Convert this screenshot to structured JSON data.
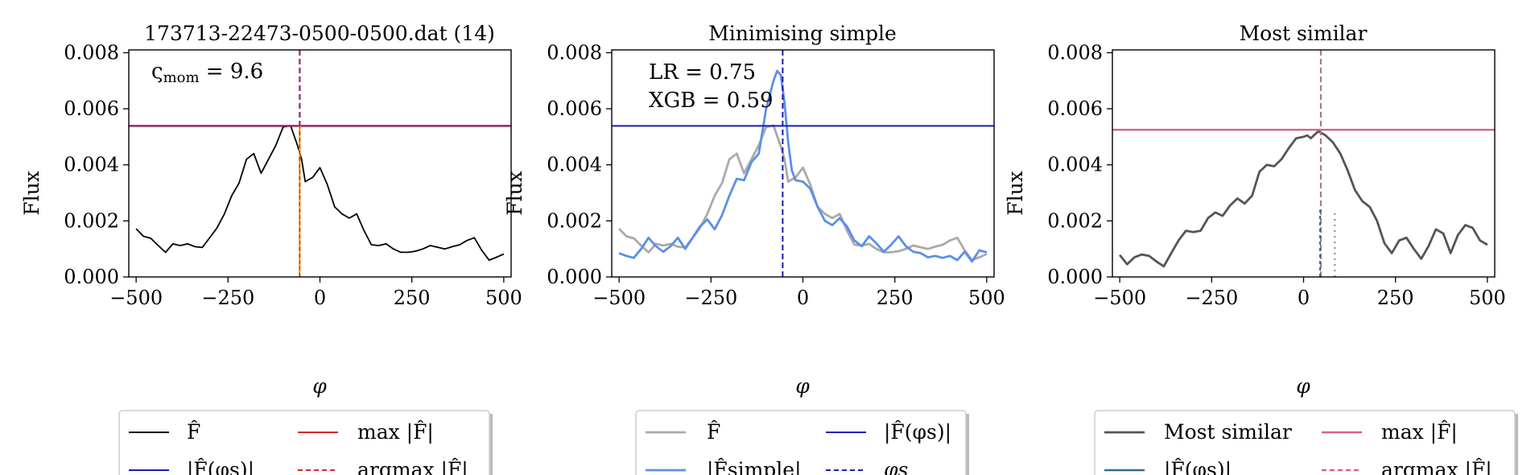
{
  "chart_data": [
    {
      "type": "line",
      "title": "173713-22473-0500-0500.dat (14)",
      "xlabel": "φ",
      "ylabel": "Flux",
      "xlim": [
        -520,
        520
      ],
      "ylim": [
        0,
        0.0081
      ],
      "xticks": [
        -500,
        -250,
        0,
        250,
        500
      ],
      "xtick_labels": [
        "−500",
        "−250",
        "0",
        "250",
        "500"
      ],
      "yticks": [
        0,
        0.002,
        0.004,
        0.006,
        0.008
      ],
      "ytick_labels": [
        "0.000",
        "0.002",
        "0.004",
        "0.006",
        "0.008"
      ],
      "annotation": {
        "prefix": "ς",
        "sub": "mom",
        "text": " = 9.6"
      },
      "series": [
        {
          "role": "F-hat",
          "color": "#000000",
          "x": [
            -500,
            -480,
            -460,
            -440,
            -420,
            -400,
            -380,
            -360,
            -340,
            -320,
            -300,
            -280,
            -260,
            -240,
            -220,
            -200,
            -180,
            -160,
            -140,
            -120,
            -100,
            -80,
            -60,
            -50,
            -40,
            -20,
            0,
            20,
            40,
            60,
            80,
            100,
            120,
            140,
            160,
            180,
            200,
            220,
            240,
            260,
            280,
            300,
            320,
            340,
            360,
            380,
            400,
            420,
            440,
            460,
            480,
            500
          ],
          "values": [
            0.00172,
            0.00145,
            0.00138,
            0.00112,
            0.00088,
            0.00118,
            0.00112,
            0.00118,
            0.00108,
            0.00105,
            0.0014,
            0.00175,
            0.00225,
            0.0029,
            0.00335,
            0.0042,
            0.0044,
            0.0037,
            0.0042,
            0.0047,
            0.00535,
            0.0054,
            0.00465,
            0.0042,
            0.0034,
            0.00355,
            0.0039,
            0.0033,
            0.0025,
            0.00225,
            0.0021,
            0.00225,
            0.00165,
            0.00115,
            0.00112,
            0.00118,
            0.001,
            0.00088,
            0.00088,
            0.00092,
            0.001,
            0.00112,
            0.00106,
            0.001,
            0.00108,
            0.00115,
            0.0013,
            0.0014,
            0.00095,
            0.0006,
            0.0007,
            0.00082
          ],
          "width": 1.8
        }
      ],
      "hlines": [
        {
          "y": 0.00539,
          "color": "#1a1ab8",
          "width": 2.5
        },
        {
          "y": 0.00539,
          "color": "#d62728",
          "width": 1.6
        }
      ],
      "vlines": [
        {
          "x": -55,
          "y0": 0,
          "y1": 0.0081,
          "color": "#1a1ab8",
          "width": 2.2,
          "dash": "7,4"
        },
        {
          "x": -55,
          "y0": 0,
          "y1": 0.0081,
          "color": "#d62728",
          "width": 1.6,
          "dash": "7,4"
        },
        {
          "x": -55,
          "y0": 0,
          "y1": 0.0054,
          "color": "#f5a623",
          "width": 2.2,
          "dash": ""
        },
        {
          "x": -55,
          "y0": 0,
          "y1": 0.0054,
          "color": "#d62728",
          "width": 1.2,
          "dash": "5,3"
        }
      ],
      "legend": {
        "position": "below",
        "rows": [
          [
            {
              "line": "#000000",
              "dash": "",
              "label": "F̂"
            },
            {
              "line": "#d62728",
              "dash": "",
              "label": "max |F̂|"
            }
          ],
          [
            {
              "line": "#1a1ab8",
              "dash": "",
              "label": "|F̂(φs)|"
            },
            {
              "line": "#d62728",
              "dash": "6,4",
              "label": "argmax |F̂|"
            }
          ]
        ]
      }
    },
    {
      "type": "line",
      "title": "Minimising simple",
      "xlabel": "φ",
      "ylabel": "Flux",
      "xlim": [
        -520,
        520
      ],
      "ylim": [
        0,
        0.0081
      ],
      "xticks": [
        -500,
        -250,
        0,
        250,
        500
      ],
      "xtick_labels": [
        "−500",
        "−250",
        "0",
        "250",
        "500"
      ],
      "yticks": [
        0,
        0.002,
        0.004,
        0.006,
        0.008
      ],
      "ytick_labels": [
        "0.000",
        "0.002",
        "0.004",
        "0.006",
        "0.008"
      ],
      "annotation_lines": [
        "LR = 0.75",
        "XGB = 0.59"
      ],
      "series": [
        {
          "role": "F-hat",
          "color": "#aaaaaa",
          "x": [
            -500,
            -480,
            -460,
            -440,
            -420,
            -400,
            -380,
            -360,
            -340,
            -320,
            -300,
            -280,
            -260,
            -240,
            -220,
            -200,
            -180,
            -160,
            -140,
            -120,
            -100,
            -80,
            -60,
            -50,
            -40,
            -20,
            0,
            20,
            40,
            60,
            80,
            100,
            120,
            140,
            160,
            180,
            200,
            220,
            240,
            260,
            280,
            300,
            320,
            340,
            360,
            380,
            400,
            420,
            440,
            460,
            480,
            500
          ],
          "values": [
            0.00172,
            0.00145,
            0.00138,
            0.00112,
            0.00088,
            0.00118,
            0.00112,
            0.00118,
            0.00108,
            0.00105,
            0.0014,
            0.00175,
            0.00225,
            0.0029,
            0.00335,
            0.0042,
            0.0044,
            0.0037,
            0.0042,
            0.0047,
            0.00535,
            0.0054,
            0.00465,
            0.0042,
            0.0034,
            0.00355,
            0.0039,
            0.0033,
            0.0025,
            0.00225,
            0.0021,
            0.00225,
            0.00165,
            0.00115,
            0.00112,
            0.00118,
            0.001,
            0.00088,
            0.00088,
            0.00092,
            0.001,
            0.00112,
            0.00106,
            0.001,
            0.00108,
            0.00115,
            0.0013,
            0.0014,
            0.00095,
            0.0006,
            0.0007,
            0.00082
          ],
          "width": 2.8
        },
        {
          "role": "F-simple",
          "color": "#5b8fe8",
          "x": [
            -500,
            -480,
            -460,
            -440,
            -420,
            -400,
            -380,
            -360,
            -340,
            -320,
            -300,
            -280,
            -260,
            -240,
            -220,
            -200,
            -180,
            -160,
            -140,
            -120,
            -100,
            -80,
            -70,
            -60,
            -50,
            -40,
            -30,
            -20,
            0,
            20,
            40,
            60,
            80,
            100,
            120,
            140,
            160,
            180,
            200,
            220,
            240,
            260,
            280,
            300,
            320,
            340,
            360,
            380,
            400,
            420,
            440,
            460,
            480,
            500
          ],
          "values": [
            0.00085,
            0.00075,
            0.00068,
            0.001,
            0.0014,
            0.0011,
            0.0009,
            0.0011,
            0.0014,
            0.001,
            0.0014,
            0.0018,
            0.00205,
            0.0017,
            0.0022,
            0.0029,
            0.0035,
            0.00345,
            0.0041,
            0.0044,
            0.006,
            0.007,
            0.00735,
            0.0072,
            0.0062,
            0.0048,
            0.0038,
            0.00345,
            0.0034,
            0.00315,
            0.0025,
            0.002,
            0.00185,
            0.0021,
            0.0018,
            0.0013,
            0.0011,
            0.00145,
            0.0012,
            0.0009,
            0.00115,
            0.00145,
            0.0011,
            0.0009,
            0.00085,
            0.0007,
            0.00075,
            0.00068,
            0.00075,
            0.0006,
            0.0009,
            0.00055,
            0.00095,
            0.00088
          ],
          "width": 2.8
        }
      ],
      "hlines": [
        {
          "y": 0.00539,
          "color": "#1a1ab8",
          "width": 2
        }
      ],
      "vlines": [
        {
          "x": -55,
          "y0": 0,
          "y1": 0.0081,
          "color": "#1a1ab8",
          "width": 2,
          "dash": "7,4"
        }
      ],
      "legend": {
        "position": "below",
        "rows": [
          [
            {
              "line": "#aaaaaa",
              "dash": "",
              "label": "F̂"
            },
            {
              "line": "#1a1ab8",
              "dash": "",
              "label": "|F̂(φs)|"
            }
          ],
          [
            {
              "line": "#5b8fe8",
              "dash": "",
              "label": "|F̂simple|"
            },
            {
              "line": "#1a1ab8",
              "dash": "6,4",
              "label": "φs"
            }
          ]
        ]
      }
    },
    {
      "type": "line",
      "title": "Most similar",
      "xlabel": "φ",
      "ylabel": "Flux",
      "xlim": [
        -520,
        520
      ],
      "ylim": [
        0,
        0.0081
      ],
      "xticks": [
        -500,
        -250,
        0,
        250,
        500
      ],
      "xtick_labels": [
        "−500",
        "−250",
        "0",
        "250",
        "500"
      ],
      "yticks": [
        0,
        0.002,
        0.004,
        0.006,
        0.008
      ],
      "ytick_labels": [
        "0.000",
        "0.002",
        "0.004",
        "0.006",
        "0.008"
      ],
      "series": [
        {
          "role": "Most similar",
          "color": "#555555",
          "x": [
            -500,
            -480,
            -460,
            -440,
            -420,
            -400,
            -380,
            -360,
            -340,
            -320,
            -300,
            -280,
            -260,
            -240,
            -220,
            -200,
            -180,
            -160,
            -140,
            -120,
            -100,
            -80,
            -60,
            -40,
            -20,
            0,
            10,
            20,
            40,
            60,
            80,
            100,
            120,
            140,
            160,
            180,
            200,
            220,
            240,
            260,
            280,
            300,
            320,
            340,
            360,
            380,
            400,
            420,
            440,
            460,
            480,
            500
          ],
          "values": [
            0.00078,
            0.00045,
            0.0007,
            0.0008,
            0.00075,
            0.00055,
            0.00038,
            0.00085,
            0.0013,
            0.00165,
            0.0016,
            0.00165,
            0.0021,
            0.0023,
            0.00218,
            0.00255,
            0.0028,
            0.00262,
            0.0029,
            0.00375,
            0.004,
            0.00395,
            0.0042,
            0.0046,
            0.00495,
            0.005,
            0.00505,
            0.00495,
            0.0052,
            0.00505,
            0.0048,
            0.0044,
            0.0038,
            0.0031,
            0.0027,
            0.0025,
            0.002,
            0.0012,
            0.00085,
            0.0013,
            0.0014,
            0.001,
            0.00065,
            0.0011,
            0.0017,
            0.00155,
            0.00085,
            0.0015,
            0.00185,
            0.00175,
            0.0013,
            0.00115
          ],
          "width": 2.8
        }
      ],
      "hlines": [
        {
          "y": 0.00525,
          "color": "#d8628c",
          "width": 2.4
        }
      ],
      "vlines": [
        {
          "x": 47,
          "y0": 0,
          "y1": 0.0081,
          "color": "#d8628c",
          "width": 2.2,
          "dash": "7,4"
        },
        {
          "x": 47,
          "y0": 0,
          "y1": 0.0081,
          "color": "#888888",
          "width": 1.2,
          "dash": "7,4"
        },
        {
          "x": 45,
          "y0": 0,
          "y1": 0.0024,
          "color": "#2e6f8e",
          "width": 2.2,
          "dash": "4,4"
        },
        {
          "x": 85,
          "y0": 0,
          "y1": 0.0024,
          "color": "#888888",
          "width": 2,
          "dash": "2,5"
        }
      ],
      "legend": {
        "position": "below",
        "rows": [
          [
            {
              "line": "#555555",
              "dash": "",
              "label": "Most similar"
            },
            {
              "line": "#d8628c",
              "dash": "",
              "label": "max |F̂|"
            }
          ],
          [
            {
              "line": "#2e6f8e",
              "dash": "",
              "label": "|F̂(φs)|"
            },
            {
              "line": "#d8628c",
              "dash": "6,4",
              "label": "argmax |F̂|"
            }
          ]
        ]
      }
    }
  ]
}
